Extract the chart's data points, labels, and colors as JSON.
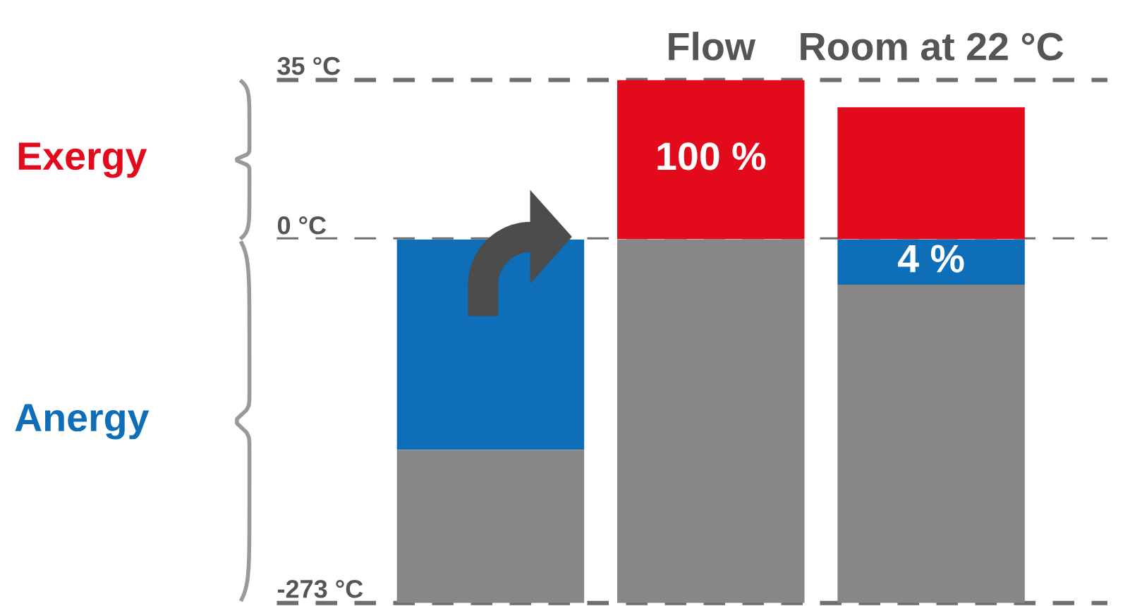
{
  "chart_data": [
    {
      "type": "bar",
      "stacked": true,
      "categories": [
        null,
        "Flow",
        "Room at 22 °C"
      ],
      "series": [
        {
          "color": "#e30a1c",
          "values": [
            null,
            35,
            29
          ]
        }
      ],
      "ylim": [
        0,
        35
      ],
      "yticks": [
        {
          "value": 35,
          "label": "35 °C"
        },
        {
          "value": 0,
          "label": null
        }
      ],
      "ref_lines": [
        {
          "axis": "y",
          "value": 35,
          "color": "#6e6e6e",
          "line_style": "dashed"
        },
        {
          "axis": "y",
          "value": 0,
          "color": "#6e6e6e",
          "line_style": "dashed"
        }
      ],
      "annotations": [
        "Exergy",
        "100 %"
      ],
      "grid": false
    },
    {
      "type": "bar",
      "stacked": true,
      "categories": [
        null,
        null,
        null
      ],
      "series": [
        {
          "color": "#0e6eb8",
          "values": [
            -158,
            null,
            -34
          ]
        },
        {
          "color": "#878787",
          "values": [
            -115,
            -273,
            -239
          ]
        }
      ],
      "ylim": [
        -273,
        0
      ],
      "yticks": [
        {
          "value": 0,
          "label": "0 °C"
        },
        {
          "value": -273,
          "label": "-273 °C"
        }
      ],
      "ref_lines": [
        {
          "axis": "y",
          "value": -273,
          "color": "#6e6e6e",
          "line_style": "dashed"
        }
      ],
      "annotations": [
        "Anergy",
        "4 %"
      ],
      "tick_labels": "y",
      "grid": false
    }
  ]
}
